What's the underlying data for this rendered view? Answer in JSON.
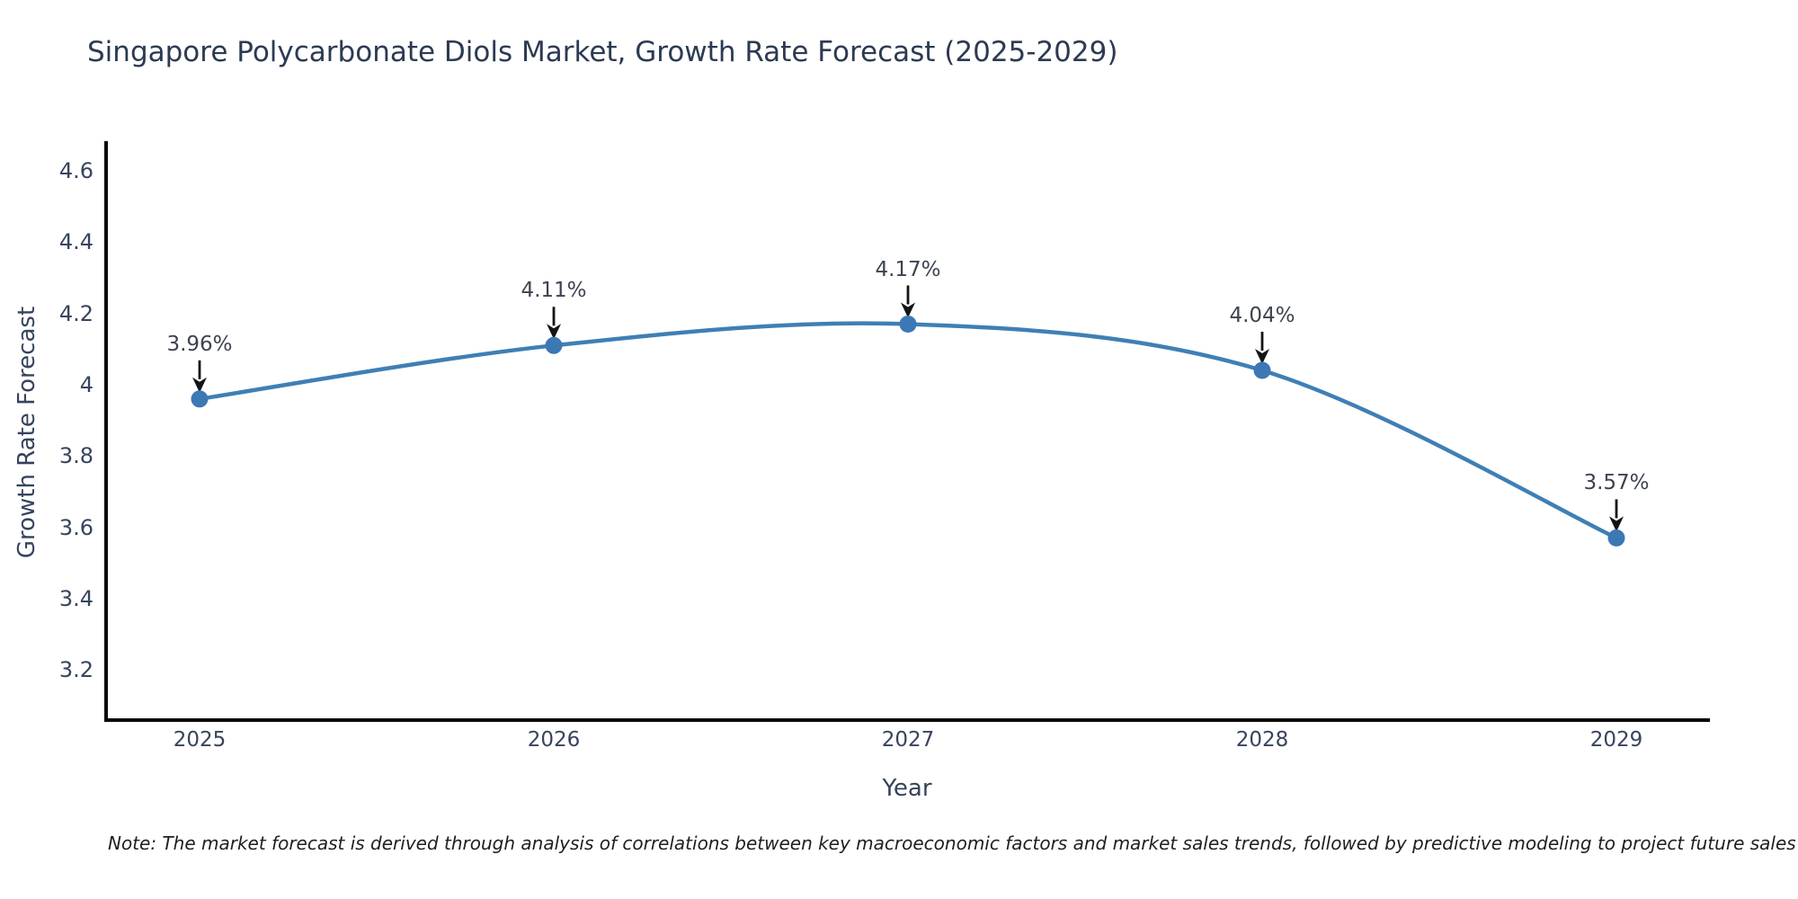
{
  "chart": {
    "title": "Singapore Polycarbonate Diols Market, Growth Rate Forecast (2025-2029)",
    "ylabel": "Growth Rate Forecast",
    "xlabel": "Year",
    "note": "Note: The market forecast is derived through analysis of correlations between key macroeconomic factors and market sales trends, followed by predictive modeling to project future sales"
  },
  "chart_data": {
    "type": "line",
    "title": "Singapore Polycarbonate Diols Market, Growth Rate Forecast (2025-2029)",
    "xlabel": "Year",
    "ylabel": "Growth Rate Forecast",
    "x": [
      2025,
      2026,
      2027,
      2028,
      2029
    ],
    "values": [
      3.96,
      4.11,
      4.17,
      4.04,
      3.57
    ],
    "point_labels": [
      "3.96%",
      "4.11%",
      "4.17%",
      "4.04%",
      "3.57%"
    ],
    "xtick_labels": [
      "2025",
      "2026",
      "2027",
      "2028",
      "2029"
    ],
    "ytick_values": [
      4.6,
      4.4,
      4.2,
      4.0,
      3.8,
      3.6,
      3.4,
      3.2
    ],
    "ytick_labels": [
      "4.6",
      "4.4",
      "4.2",
      "4",
      "3.8",
      "3.6",
      "3.4",
      "3.2"
    ],
    "ylim": [
      3.06,
      4.68
    ],
    "xlim_years": [
      2024.736,
      2029.26
    ],
    "grid": false,
    "legend": "none",
    "colors": {
      "line": "#3f7fb5",
      "marker": "#3c78b4",
      "axis": "#0a0a0a",
      "arrow": "#141414",
      "annotation_text": "#3d4350",
      "tick_text": "#37445e",
      "title_text": "#2c3a52"
    }
  }
}
